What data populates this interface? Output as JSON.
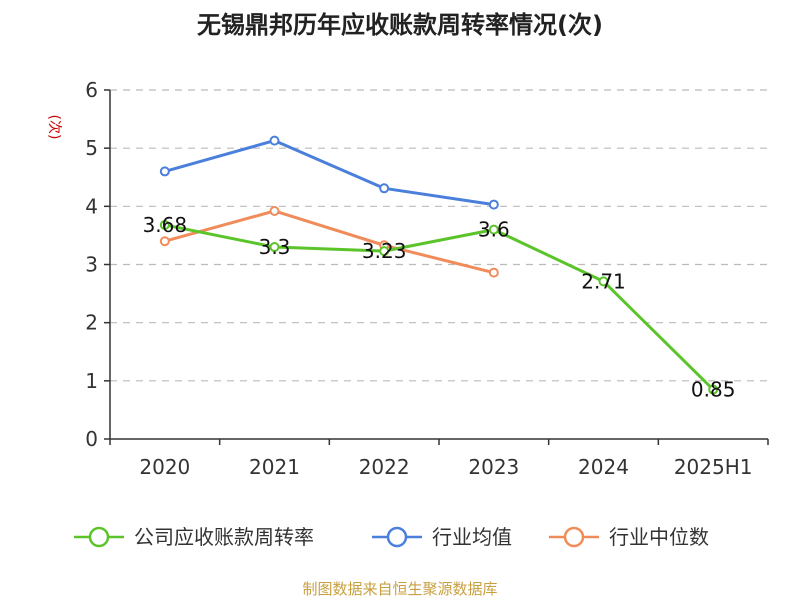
{
  "chart_data": {
    "type": "line",
    "title": "无锡鼎邦历年应收账款周转率情况(次)",
    "ylabel": "(次)",
    "categories": [
      "2020",
      "2021",
      "2022",
      "2023",
      "2024",
      "2025H1"
    ],
    "ylim": [
      0,
      6
    ],
    "yticks": [
      0,
      1,
      2,
      3,
      4,
      5,
      6
    ],
    "grid": true,
    "legend_position": "bottom",
    "series": [
      {
        "name": "公司应收账款周转率",
        "color": "#5cc42b",
        "values": [
          3.68,
          3.3,
          3.23,
          3.6,
          2.71,
          0.85
        ],
        "labels": [
          "3.68",
          "3.3",
          "3.23",
          "3.6",
          "2.71",
          "0.85"
        ]
      },
      {
        "name": "行业均值",
        "color": "#4a7fdb",
        "values": [
          4.6,
          5.13,
          4.31,
          4.03,
          null,
          null
        ]
      },
      {
        "name": "行业中位数",
        "color": "#f08c5a",
        "values": [
          3.4,
          3.92,
          3.33,
          2.86,
          null,
          null
        ]
      }
    ],
    "source": "制图数据来自恒生聚源数据库"
  }
}
